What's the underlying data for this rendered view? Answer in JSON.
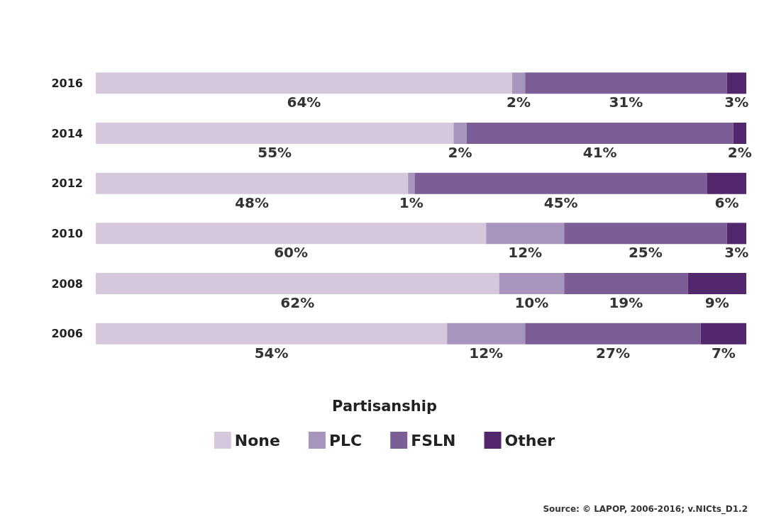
{
  "chart_data": {
    "type": "bar",
    "orientation": "horizontal",
    "stacked": true,
    "legend": "bottom",
    "legend_title": "Partisanship",
    "tick_labels": "y",
    "categories": [
      "2016",
      "2014",
      "2012",
      "2010",
      "2008",
      "2006"
    ],
    "series": [
      {
        "name": "None",
        "color": "#d5c8dd",
        "values": [
          64,
          55,
          48,
          60,
          62,
          54
        ],
        "value_labels": [
          "64%",
          "55%",
          "48%",
          "60%",
          "62%",
          "54%"
        ]
      },
      {
        "name": "PLC",
        "color": "#a895bd",
        "values": [
          2,
          2,
          1,
          12,
          10,
          12
        ],
        "value_labels": [
          "2%",
          "2%",
          "1%",
          "12%",
          "10%",
          "12%"
        ]
      },
      {
        "name": "FSLN",
        "color": "#7b5e96",
        "values": [
          31,
          41,
          45,
          25,
          19,
          27
        ],
        "value_labels": [
          "31%",
          "41%",
          "45%",
          "25%",
          "19%",
          "27%"
        ]
      },
      {
        "name": "Other",
        "color": "#52276b",
        "values": [
          3,
          2,
          6,
          3,
          9,
          7
        ],
        "value_labels": [
          "3%",
          "2%",
          "6%",
          "3%",
          "9%",
          "7%"
        ]
      }
    ],
    "annotations": [
      "Source: © LAPOP, 2006-2016; v.NICts_D1.2"
    ]
  }
}
